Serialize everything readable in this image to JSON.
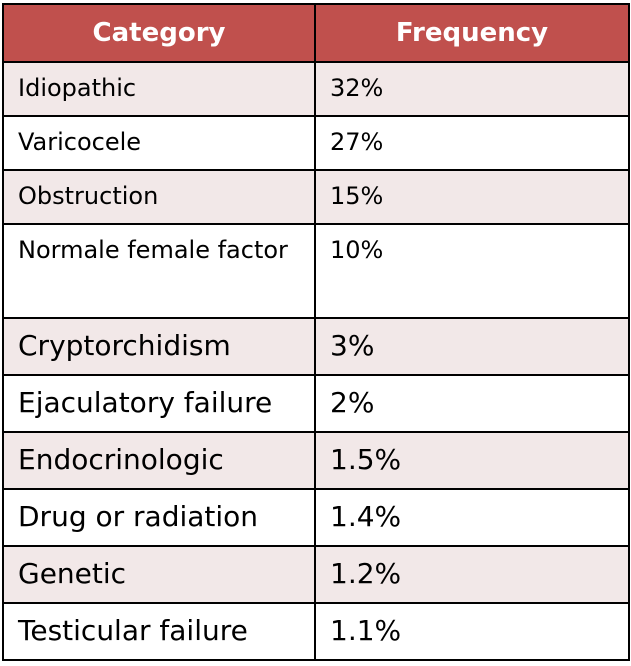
{
  "chart_data": {
    "type": "table",
    "columns": [
      "Category",
      "Frequency"
    ],
    "rows": [
      {
        "category": "Idiopathic",
        "frequency": "32%"
      },
      {
        "category": "Varicocele",
        "frequency": "27%"
      },
      {
        "category": "Obstruction",
        "frequency": "15%"
      },
      {
        "category": "Normale female factor",
        "frequency": "10%"
      },
      {
        "category": "Cryptorchidism",
        "frequency": "3%"
      },
      {
        "category": "Ejaculatory failure",
        "frequency": "2%"
      },
      {
        "category": "Endocrinologic",
        "frequency": "1.5%"
      },
      {
        "category": "Drug or radiation",
        "frequency": "1.4%"
      },
      {
        "category": "Genetic",
        "frequency": "1.2%"
      },
      {
        "category": "Testicular failure",
        "frequency": "1.1%"
      }
    ],
    "values": [
      32,
      27,
      15,
      10,
      3,
      2,
      1.5,
      1.4,
      1.2,
      1.1
    ],
    "colors": {
      "header": "#c0504d",
      "band": "#f2e8e8",
      "header_text": "#ffffff"
    }
  }
}
